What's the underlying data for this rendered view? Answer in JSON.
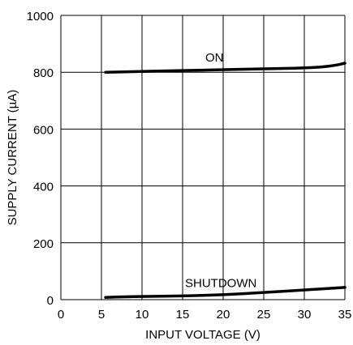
{
  "chart_data": {
    "type": "line",
    "title": "",
    "xlabel": "INPUT VOLTAGE (V)",
    "ylabel": "SUPPLY CURRENT (µA)",
    "xlim": [
      0,
      35
    ],
    "ylim": [
      0,
      1000
    ],
    "xticks": [
      0,
      5,
      10,
      15,
      20,
      25,
      30,
      35
    ],
    "yticks": [
      0,
      200,
      400,
      600,
      800,
      1000
    ],
    "grid": true,
    "series": [
      {
        "name": "ON",
        "x": [
          5.5,
          10,
          15,
          20,
          25,
          27.5,
          30,
          32,
          34,
          35
        ],
        "y": [
          800,
          803,
          806,
          809,
          812,
          813,
          815,
          818,
          825,
          832
        ]
      },
      {
        "name": "SHUTDOWN",
        "x": [
          5.5,
          8,
          10,
          15,
          20,
          25,
          30,
          35
        ],
        "y": [
          8,
          10,
          11,
          13,
          17,
          25,
          34,
          43
        ]
      }
    ]
  }
}
